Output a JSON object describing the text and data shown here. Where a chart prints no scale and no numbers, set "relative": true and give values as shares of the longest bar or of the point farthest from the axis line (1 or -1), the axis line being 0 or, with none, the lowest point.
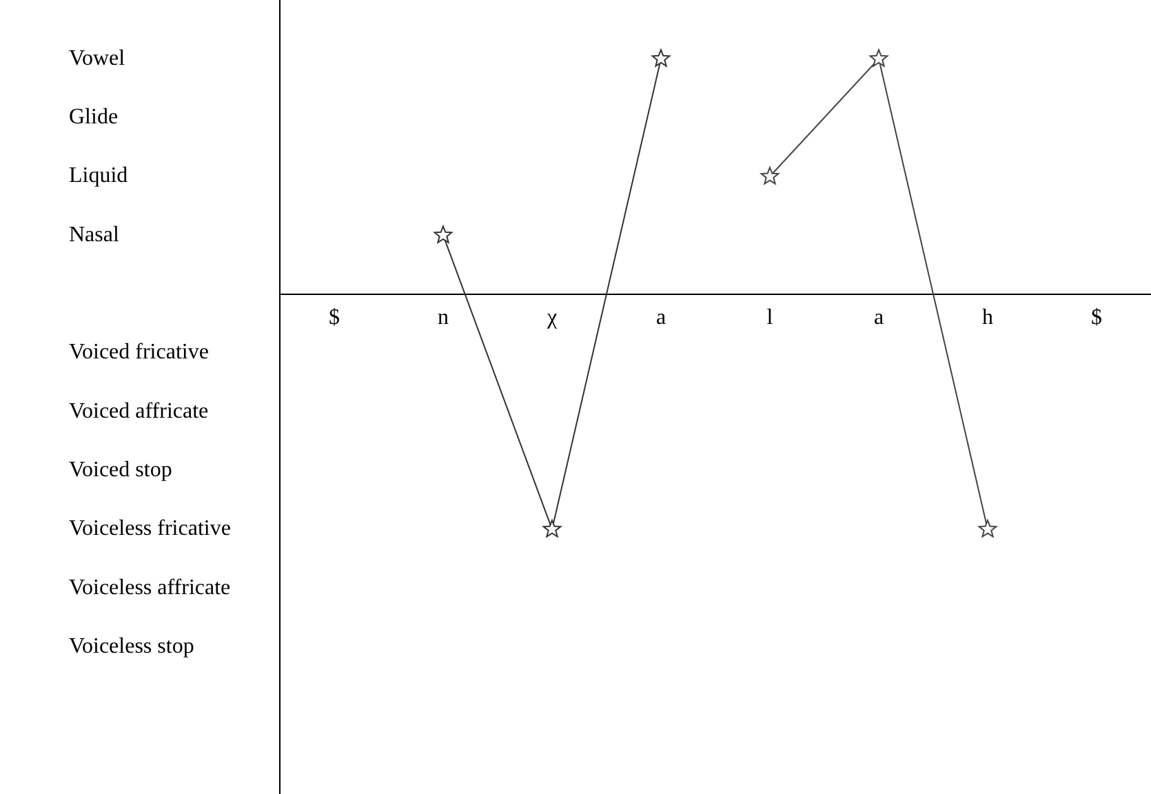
{
  "chart_data": {
    "type": "line",
    "relative": true,
    "categories": [
      "$",
      "n",
      "χ",
      "a",
      "l",
      "a",
      "h",
      "$"
    ],
    "series": [
      {
        "color": "#333333",
        "values": [
          null,
          0.25,
          -1,
          1,
          null,
          null,
          null,
          null
        ]
      },
      {
        "color": "#444444",
        "values": [
          null,
          null,
          null,
          null,
          0.5,
          1,
          -1,
          null
        ]
      }
    ],
    "annotations": [
      "Vowel",
      "Glide",
      "Liquid",
      "Nasal",
      "Voiced fricative",
      "Voiced affricate",
      "Voiced stop",
      "Voiceless fricative",
      "Voiceless affricate",
      "Voiceless stop"
    ],
    "grid": false,
    "legend": false,
    "marker": "star",
    "line_style": "solid"
  }
}
